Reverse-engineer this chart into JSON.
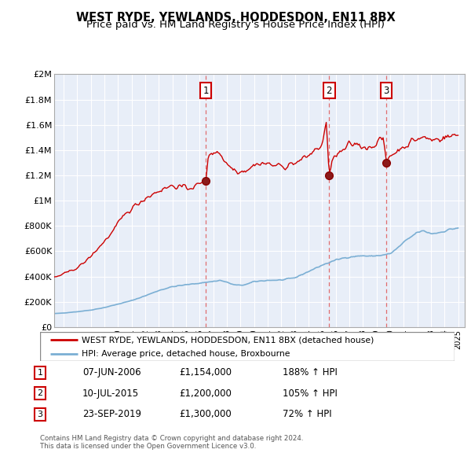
{
  "title": "WEST RYDE, YEWLANDS, HODDESDON, EN11 8BX",
  "subtitle": "Price paid vs. HM Land Registry's House Price Index (HPI)",
  "title_fontsize": 10.5,
  "subtitle_fontsize": 9.5,
  "background_color": "#ffffff",
  "plot_bg_color": "#e8eef8",
  "grid_color": "#ffffff",
  "red_line_color": "#cc0000",
  "blue_line_color": "#7bafd4",
  "dashed_line_color": "#e06060",
  "ylim": [
    0,
    2000000
  ],
  "yticks": [
    0,
    200000,
    400000,
    600000,
    800000,
    1000000,
    1200000,
    1400000,
    1600000,
    1800000,
    2000000
  ],
  "ytick_labels": [
    "£0",
    "£200K",
    "£400K",
    "£600K",
    "£800K",
    "£1M",
    "£1.2M",
    "£1.4M",
    "£1.6M",
    "£1.8M",
    "£2M"
  ],
  "sale_dates": [
    2006.44,
    2015.52,
    2019.72
  ],
  "sale_values": [
    1154000,
    1200000,
    1300000
  ],
  "sale_labels": [
    "1",
    "2",
    "3"
  ],
  "sale_info": [
    {
      "label": "1",
      "date": "07-JUN-2006",
      "price": "£1,154,000",
      "hpi": "188% ↑ HPI"
    },
    {
      "label": "2",
      "date": "10-JUL-2015",
      "price": "£1,200,000",
      "hpi": "105% ↑ HPI"
    },
    {
      "label": "3",
      "date": "23-SEP-2019",
      "price": "£1,300,000",
      "hpi": "72% ↑ HPI"
    }
  ],
  "legend_red": "WEST RYDE, YEWLANDS, HODDESDON, EN11 8BX (detached house)",
  "legend_blue": "HPI: Average price, detached house, Broxbourne",
  "footer1": "Contains HM Land Registry data © Crown copyright and database right 2024.",
  "footer2": "This data is licensed under the Open Government Licence v3.0.",
  "xmin": 1995.5,
  "xmax": 2025.5
}
